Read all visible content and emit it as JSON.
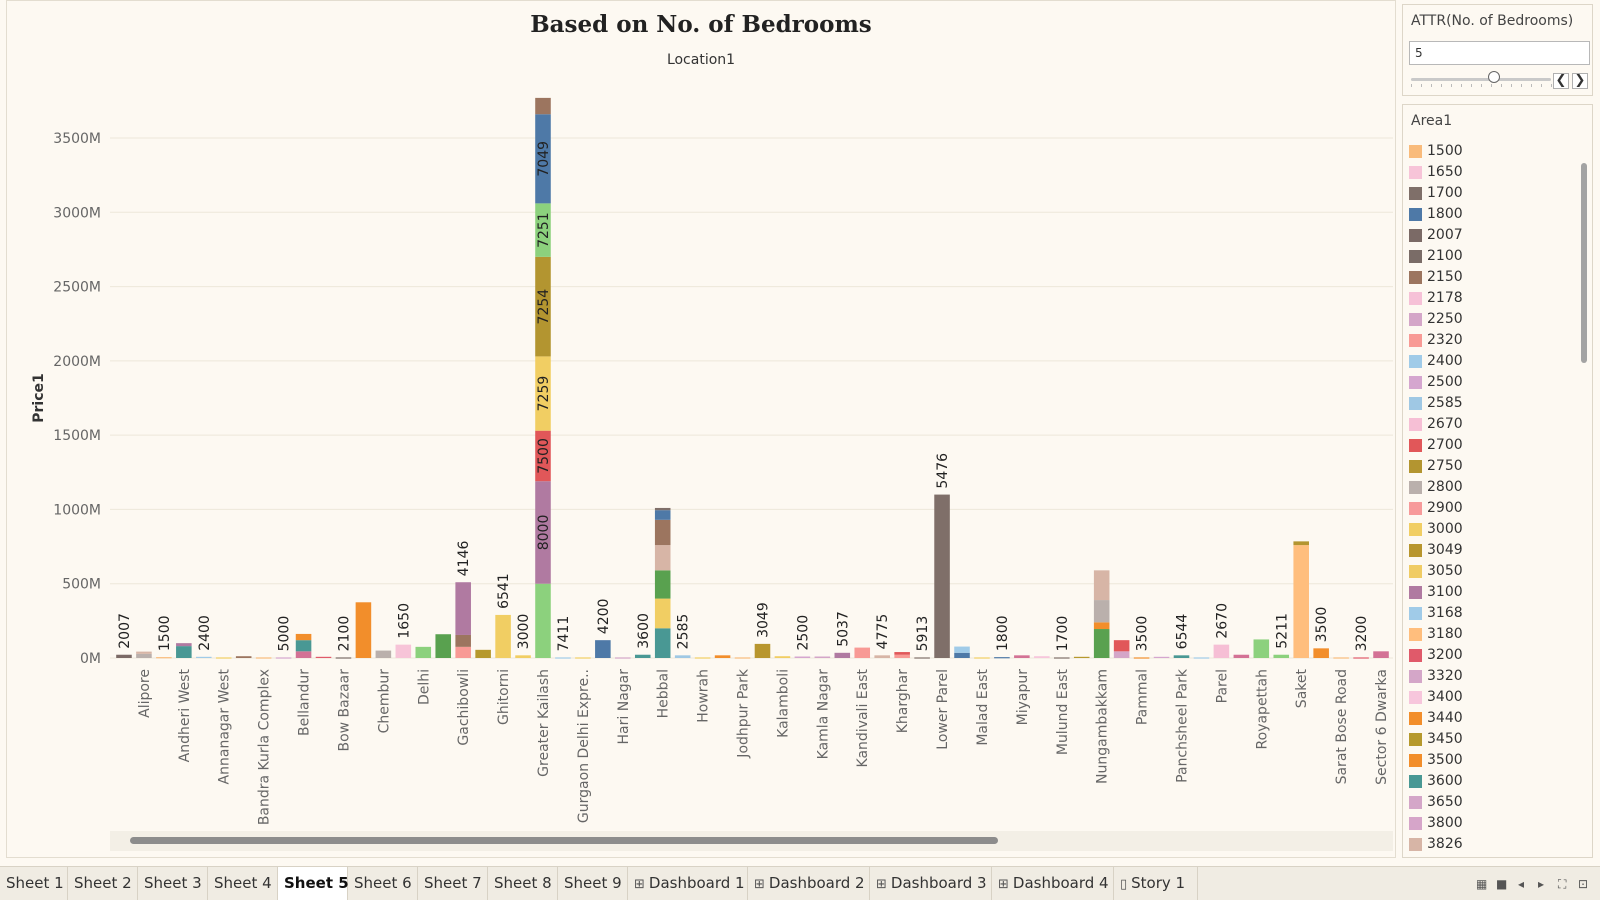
{
  "header": {
    "title": "Based on No. of Bedrooms",
    "subtitle": "Location1"
  },
  "filter": {
    "title": "ATTR(No. of Bedrooms)",
    "value": "5",
    "slider_fraction": 0.59,
    "prev_label": "❮",
    "next_label": "❯"
  },
  "legend": {
    "title": "Area1",
    "items": [
      {
        "label": "1500",
        "color": "#f9bb7b"
      },
      {
        "label": "1650",
        "color": "#f7c4d8"
      },
      {
        "label": "1700",
        "color": "#7f6f69"
      },
      {
        "label": "1800",
        "color": "#4e79a7"
      },
      {
        "label": "2007",
        "color": "#7b6a66"
      },
      {
        "label": "2100",
        "color": "#7a6c67"
      },
      {
        "label": "2150",
        "color": "#9c755f"
      },
      {
        "label": "2178",
        "color": "#f6c1d7"
      },
      {
        "label": "2250",
        "color": "#d4a6c8"
      },
      {
        "label": "2320",
        "color": "#f89a95"
      },
      {
        "label": "2400",
        "color": "#a0cbe8"
      },
      {
        "label": "2500",
        "color": "#d5a6cf"
      },
      {
        "label": "2585",
        "color": "#9fc8e4"
      },
      {
        "label": "2670",
        "color": "#f6bfd5"
      },
      {
        "label": "2700",
        "color": "#e15759"
      },
      {
        "label": "2750",
        "color": "#b39530"
      },
      {
        "label": "2800",
        "color": "#bab0ac"
      },
      {
        "label": "2900",
        "color": "#f79a9a"
      },
      {
        "label": "3000",
        "color": "#f1ce63"
      },
      {
        "label": "3049",
        "color": "#b8962e"
      },
      {
        "label": "3050",
        "color": "#f0cc64"
      },
      {
        "label": "3100",
        "color": "#b07aa1"
      },
      {
        "label": "3168",
        "color": "#a0cbe8"
      },
      {
        "label": "3180",
        "color": "#ffbe7d"
      },
      {
        "label": "3200",
        "color": "#e05a6a"
      },
      {
        "label": "3320",
        "color": "#d4a6c8"
      },
      {
        "label": "3400",
        "color": "#f7c6dc"
      },
      {
        "label": "3440",
        "color": "#f28e2b"
      },
      {
        "label": "3450",
        "color": "#b6992d"
      },
      {
        "label": "3500",
        "color": "#f28e2b"
      },
      {
        "label": "3600",
        "color": "#499894"
      },
      {
        "label": "3650",
        "color": "#d4a6c8"
      },
      {
        "label": "3800",
        "color": "#d6a5c9"
      },
      {
        "label": "3826",
        "color": "#d7b5a6"
      }
    ]
  },
  "tabs": [
    {
      "label": "Sheet 1",
      "icon": "",
      "active": false
    },
    {
      "label": "Sheet 2",
      "icon": "",
      "active": false
    },
    {
      "label": "Sheet 3",
      "icon": "",
      "active": false
    },
    {
      "label": "Sheet 4",
      "icon": "",
      "active": false
    },
    {
      "label": "Sheet 5",
      "icon": "",
      "active": true
    },
    {
      "label": "Sheet 6",
      "icon": "",
      "active": false
    },
    {
      "label": "Sheet 7",
      "icon": "",
      "active": false
    },
    {
      "label": "Sheet 8",
      "icon": "",
      "active": false
    },
    {
      "label": "Sheet 9",
      "icon": "",
      "active": false
    },
    {
      "label": "Dashboard 1",
      "icon": "dashboard-icon",
      "active": false
    },
    {
      "label": "Dashboard 2",
      "icon": "dashboard-icon",
      "active": false
    },
    {
      "label": "Dashboard 3",
      "icon": "dashboard-icon",
      "active": false
    },
    {
      "label": "Dashboard 4",
      "icon": "dashboard-icon",
      "active": false
    },
    {
      "label": "Story 1",
      "icon": "story-icon",
      "active": false
    }
  ],
  "chart_data": {
    "type": "bar",
    "stacked": true,
    "title": "Based on No. of Bedrooms",
    "subtitle": "Location1",
    "xlabel": "",
    "ylabel": "Price1",
    "ylim": [
      -70,
      3850
    ],
    "yticks": [
      {
        "value": 0,
        "label": "0M"
      },
      {
        "value": 500,
        "label": "500M"
      },
      {
        "value": 1000,
        "label": "1000M"
      },
      {
        "value": 1500,
        "label": "1500M"
      },
      {
        "value": 2000,
        "label": "2000M"
      },
      {
        "value": 2500,
        "label": "2500M"
      },
      {
        "value": 3000,
        "label": "3000M"
      },
      {
        "value": 3500,
        "label": "3500M"
      }
    ],
    "grid": true,
    "legend_position": "right",
    "bars": [
      {
        "category": "",
        "label": "2007",
        "segments": [
          {
            "value": 22,
            "color": "#7b6a66"
          }
        ]
      },
      {
        "category": "Alipore",
        "label": "",
        "segments": [
          {
            "value": 28,
            "color": "#bab0ac"
          },
          {
            "value": 15,
            "color": "#d7b5a6"
          }
        ]
      },
      {
        "category": "",
        "label": "1500",
        "segments": [
          {
            "value": 6,
            "color": "#f9bb7b"
          }
        ]
      },
      {
        "category": "Andheri West",
        "label": "",
        "segments": [
          {
            "value": 80,
            "color": "#499894"
          },
          {
            "value": 20,
            "color": "#b07aa1"
          }
        ]
      },
      {
        "category": "",
        "label": "2400",
        "segments": [
          {
            "value": 8,
            "color": "#a0cbe8"
          }
        ]
      },
      {
        "category": "Annanagar West",
        "label": "",
        "segments": [
          {
            "value": 4,
            "color": "#f1ce63"
          }
        ]
      },
      {
        "category": "",
        "label": "",
        "segments": [
          {
            "value": 12,
            "color": "#9c755f"
          }
        ]
      },
      {
        "category": "Bandra Kurla Complex",
        "label": "",
        "segments": [
          {
            "value": 4,
            "color": "#f9bb7b"
          }
        ]
      },
      {
        "category": "",
        "label": "5000",
        "segments": [
          {
            "value": 4,
            "color": "#d5a6cf"
          }
        ]
      },
      {
        "category": "Bellandur",
        "label": "",
        "segments": [
          {
            "value": 45,
            "color": "#d37295"
          },
          {
            "value": 75,
            "color": "#499894"
          },
          {
            "value": 42,
            "color": "#f28e2b"
          }
        ]
      },
      {
        "category": "",
        "label": "",
        "segments": [
          {
            "value": 8,
            "color": "#e05a6a"
          }
        ]
      },
      {
        "category": "Bow Bazaar",
        "label": "2100",
        "segments": [
          {
            "value": 4,
            "color": "#7a6c67"
          }
        ]
      },
      {
        "category": "",
        "label": "",
        "segments": [
          {
            "value": 375,
            "color": "#f28e2b"
          }
        ]
      },
      {
        "category": "Chembur",
        "label": "",
        "segments": [
          {
            "value": 50,
            "color": "#bab0ac"
          }
        ]
      },
      {
        "category": "",
        "label": "1650",
        "segments": [
          {
            "value": 90,
            "color": "#f7c4d8"
          }
        ]
      },
      {
        "category": "Delhi",
        "label": "",
        "segments": [
          {
            "value": 75,
            "color": "#8cd17d"
          }
        ]
      },
      {
        "category": "",
        "label": "",
        "segments": [
          {
            "value": 160,
            "color": "#59a14f"
          }
        ]
      },
      {
        "category": "Gachibowli",
        "label": "4146",
        "segments": [
          {
            "value": 75,
            "color": "#f89a95"
          },
          {
            "value": 80,
            "color": "#9c755f"
          },
          {
            "value": 355,
            "color": "#b07aa1"
          }
        ]
      },
      {
        "category": "",
        "label": "",
        "segments": [
          {
            "value": 55,
            "color": "#b6992d"
          }
        ]
      },
      {
        "category": "Ghitorni",
        "label": "6541",
        "segments": [
          {
            "value": 290,
            "color": "#f1ce63"
          }
        ]
      },
      {
        "category": "",
        "label": "3000",
        "segments": [
          {
            "value": 18,
            "color": "#f1ce63"
          }
        ]
      },
      {
        "category": "Greater Kailash",
        "label": "",
        "segments": [
          {
            "value": 500,
            "color": "#8cd17d"
          },
          {
            "value": 690,
            "color": "#b07aa1",
            "label": "8000"
          },
          {
            "value": 340,
            "color": "#e15759",
            "label": "7500"
          },
          {
            "value": 500,
            "color": "#f1ce63",
            "label": "7259"
          },
          {
            "value": 670,
            "color": "#b39530",
            "label": "7254"
          },
          {
            "value": 360,
            "color": "#8cd17d",
            "label": "7251"
          },
          {
            "value": 600,
            "color": "#4e79a7",
            "label": "7049"
          },
          {
            "value": 110,
            "color": "#9c755f"
          }
        ]
      },
      {
        "category": "",
        "label": "7411",
        "segments": [
          {
            "value": 4,
            "color": "#a0cbe8"
          }
        ]
      },
      {
        "category": "Gurgaon Delhi Expre..",
        "label": "",
        "segments": [
          {
            "value": 4,
            "color": "#f1ce63"
          }
        ]
      },
      {
        "category": "",
        "label": "4200",
        "segments": [
          {
            "value": 120,
            "color": "#4e79a7"
          }
        ]
      },
      {
        "category": "Hari Nagar",
        "label": "",
        "segments": [
          {
            "value": 4,
            "color": "#d4a6c8"
          }
        ]
      },
      {
        "category": "",
        "label": "3600",
        "segments": [
          {
            "value": 22,
            "color": "#499894"
          }
        ]
      },
      {
        "category": "Hebbal",
        "label": "",
        "segments": [
          {
            "value": 200,
            "color": "#499894"
          },
          {
            "value": 200,
            "color": "#f1ce63"
          },
          {
            "value": 190,
            "color": "#59a14f"
          },
          {
            "value": 170,
            "color": "#d7b5a6"
          },
          {
            "value": 170,
            "color": "#9c755f"
          },
          {
            "value": 65,
            "color": "#4e79a7"
          },
          {
            "value": 15,
            "color": "#7f6f69"
          }
        ]
      },
      {
        "category": "",
        "label": "2585",
        "segments": [
          {
            "value": 18,
            "color": "#9fc8e4"
          }
        ]
      },
      {
        "category": "Howrah",
        "label": "",
        "segments": [
          {
            "value": 4,
            "color": "#f1ce63"
          }
        ]
      },
      {
        "category": "",
        "label": "",
        "segments": [
          {
            "value": 18,
            "color": "#f28e2b"
          }
        ]
      },
      {
        "category": "Jodhpur Park",
        "label": "",
        "segments": [
          {
            "value": 4,
            "color": "#f9bb7b"
          }
        ]
      },
      {
        "category": "",
        "label": "3049",
        "segments": [
          {
            "value": 95,
            "color": "#b8962e"
          }
        ]
      },
      {
        "category": "Kalamboli",
        "label": "",
        "segments": [
          {
            "value": 12,
            "color": "#f1ce63"
          }
        ]
      },
      {
        "category": "",
        "label": "2500",
        "segments": [
          {
            "value": 10,
            "color": "#d5a6cf"
          }
        ]
      },
      {
        "category": "Kamla Nagar",
        "label": "",
        "segments": [
          {
            "value": 10,
            "color": "#d4a6c8"
          }
        ]
      },
      {
        "category": "",
        "label": "5037",
        "segments": [
          {
            "value": 35,
            "color": "#b07aa1"
          }
        ]
      },
      {
        "category": "Kandivali East",
        "label": "",
        "segments": [
          {
            "value": 70,
            "color": "#f89a95"
          }
        ]
      },
      {
        "category": "",
        "label": "4775",
        "segments": [
          {
            "value": 18,
            "color": "#d7b5a6"
          }
        ]
      },
      {
        "category": "Kharghar",
        "label": "",
        "segments": [
          {
            "value": 22,
            "color": "#f89a95"
          },
          {
            "value": 18,
            "color": "#e15759"
          }
        ]
      },
      {
        "category": "",
        "label": "5913",
        "segments": [
          {
            "value": 4,
            "color": "#7f6f69"
          }
        ]
      },
      {
        "category": "Lower Parel",
        "label": "5476",
        "segments": [
          {
            "value": 1100,
            "color": "#7f6f69"
          }
        ]
      },
      {
        "category": "",
        "label": "",
        "segments": [
          {
            "value": 35,
            "color": "#4e79a7"
          },
          {
            "value": 42,
            "color": "#a0cbe8"
          }
        ]
      },
      {
        "category": "Malad East",
        "label": "",
        "segments": [
          {
            "value": 4,
            "color": "#f1ce63"
          }
        ]
      },
      {
        "category": "",
        "label": "1800",
        "segments": [
          {
            "value": 6,
            "color": "#4e79a7"
          }
        ]
      },
      {
        "category": "Miyapur",
        "label": "",
        "segments": [
          {
            "value": 18,
            "color": "#d37295"
          }
        ]
      },
      {
        "category": "",
        "label": "",
        "segments": [
          {
            "value": 12,
            "color": "#f7c6dc"
          }
        ]
      },
      {
        "category": "Mulund East",
        "label": "1700",
        "segments": [
          {
            "value": 4,
            "color": "#7f6f69"
          }
        ]
      },
      {
        "category": "",
        "label": "",
        "segments": [
          {
            "value": 8,
            "color": "#b6992d"
          }
        ]
      },
      {
        "category": "Nungambakkam",
        "label": "",
        "segments": [
          {
            "value": 195,
            "color": "#59a14f"
          },
          {
            "value": 45,
            "color": "#f28e2b"
          },
          {
            "value": 150,
            "color": "#bab0ac"
          },
          {
            "value": 200,
            "color": "#d7b5a6"
          }
        ]
      },
      {
        "category": "",
        "label": "",
        "segments": [
          {
            "value": 45,
            "color": "#d4a6c8"
          },
          {
            "value": 75,
            "color": "#e15759"
          }
        ]
      },
      {
        "category": "Pammal",
        "label": "3500",
        "segments": [
          {
            "value": 4,
            "color": "#f28e2b"
          }
        ]
      },
      {
        "category": "",
        "label": "",
        "segments": [
          {
            "value": 8,
            "color": "#d5a6cf"
          }
        ]
      },
      {
        "category": "Panchsheel Park",
        "label": "6544",
        "segments": [
          {
            "value": 18,
            "color": "#499894"
          }
        ]
      },
      {
        "category": "",
        "label": "",
        "segments": [
          {
            "value": 4,
            "color": "#a0cbe8"
          }
        ]
      },
      {
        "category": "Parel",
        "label": "2670",
        "segments": [
          {
            "value": 90,
            "color": "#f6bfd5"
          }
        ]
      },
      {
        "category": "",
        "label": "",
        "segments": [
          {
            "value": 22,
            "color": "#d37295"
          }
        ]
      },
      {
        "category": "Royapettah",
        "label": "",
        "segments": [
          {
            "value": 125,
            "color": "#8cd17d"
          }
        ]
      },
      {
        "category": "",
        "label": "5211",
        "segments": [
          {
            "value": 22,
            "color": "#8cd17d"
          }
        ]
      },
      {
        "category": "Saket",
        "label": "",
        "segments": [
          {
            "value": 760,
            "color": "#ffbe7d"
          },
          {
            "value": 25,
            "color": "#b39530"
          }
        ]
      },
      {
        "category": "",
        "label": "3500",
        "segments": [
          {
            "value": 65,
            "color": "#f28e2b"
          }
        ]
      },
      {
        "category": "Sarat Bose Road",
        "label": "",
        "segments": [
          {
            "value": 4,
            "color": "#f9bb7b"
          }
        ]
      },
      {
        "category": "",
        "label": "3200",
        "segments": [
          {
            "value": 4,
            "color": "#e05a6a"
          }
        ]
      },
      {
        "category": "Sector 6 Dwarka",
        "label": "",
        "segments": [
          {
            "value": 45,
            "color": "#d37295"
          }
        ]
      }
    ]
  }
}
